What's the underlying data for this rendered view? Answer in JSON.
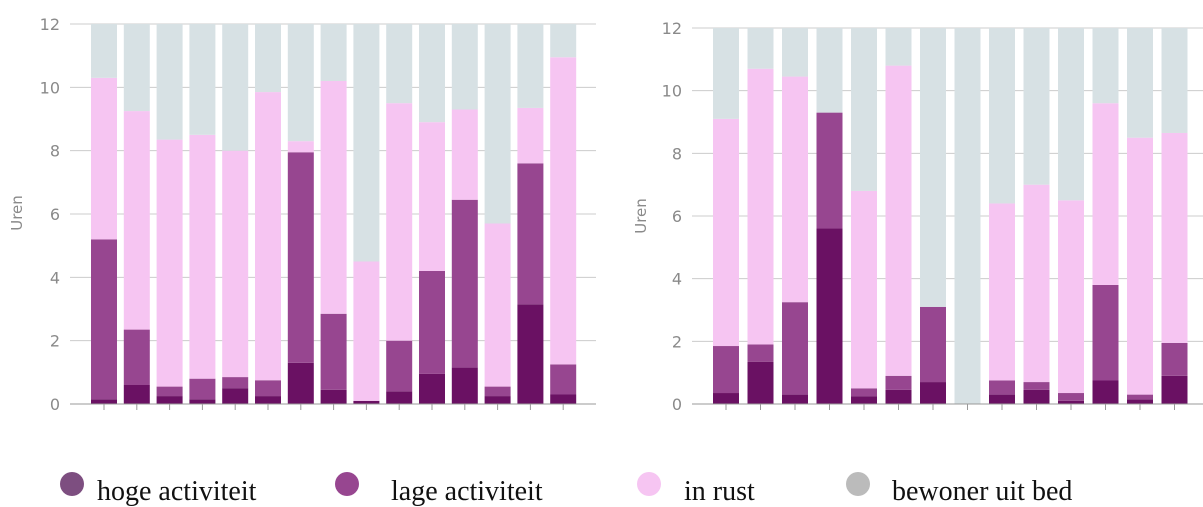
{
  "colors": {
    "hoge": "#6a1163",
    "lage": "#974690",
    "rust": "#f6c5f2",
    "uit_bed": "#d7e1e4",
    "legend_hoge": "#7d4e80",
    "legend_lage": "#974690",
    "legend_rust": "#f6c5f2",
    "legend_uit_bed": "#bbbbbb",
    "grid": "#cccccc"
  },
  "legend": [
    {
      "name": "hoge activiteit",
      "color_key": "legend_hoge"
    },
    {
      "name": "lage activiteit",
      "color_key": "legend_lage"
    },
    {
      "name": "in rust",
      "color_key": "legend_rust"
    },
    {
      "name": "bewoner uit bed",
      "color_key": "legend_uit_bed"
    }
  ],
  "chart_data": [
    {
      "type": "bar",
      "stacked": true,
      "ylabel": "Uren",
      "ylim": [
        0,
        12
      ],
      "yticks": [
        0,
        2,
        4,
        6,
        8,
        10,
        12
      ],
      "grid": true,
      "legend_position": "bottom",
      "series": [
        {
          "name": "hoge activiteit",
          "color_key": "hoge",
          "values": [
            0.15,
            0.6,
            0.25,
            0.15,
            0.5,
            0.25,
            1.3,
            0.45,
            0.1,
            0.4,
            0.95,
            1.15,
            0.25,
            3.15,
            0.3
          ]
        },
        {
          "name": "lage activiteit",
          "color_key": "lage",
          "values": [
            5.05,
            1.75,
            0.3,
            0.65,
            0.35,
            0.5,
            6.65,
            2.4,
            0.0,
            1.6,
            3.25,
            5.3,
            0.3,
            4.45,
            0.95
          ]
        },
        {
          "name": "in rust",
          "color_key": "rust",
          "values": [
            5.1,
            6.9,
            7.8,
            7.7,
            7.15,
            9.1,
            0.35,
            7.35,
            4.4,
            7.5,
            4.7,
            2.85,
            5.15,
            1.75,
            9.7
          ]
        },
        {
          "name": "bewoner uit bed",
          "color_key": "uit_bed",
          "values": [
            1.7,
            2.75,
            3.65,
            3.5,
            4.0,
            2.15,
            3.7,
            1.8,
            7.5,
            2.5,
            3.1,
            2.7,
            6.3,
            2.65,
            1.05
          ]
        }
      ]
    },
    {
      "type": "bar",
      "stacked": true,
      "ylabel": "Uren",
      "ylim": [
        0,
        12
      ],
      "yticks": [
        0,
        2,
        4,
        6,
        8,
        10,
        12
      ],
      "grid": true,
      "legend_position": "bottom",
      "series": [
        {
          "name": "hoge activiteit",
          "color_key": "hoge",
          "values": [
            0.35,
            1.35,
            0.3,
            5.6,
            0.25,
            0.45,
            0.7,
            0.0,
            0.3,
            0.45,
            0.1,
            0.75,
            0.15,
            0.9
          ]
        },
        {
          "name": "lage activiteit",
          "color_key": "lage",
          "values": [
            1.5,
            0.55,
            2.95,
            3.7,
            0.25,
            0.45,
            2.4,
            0.0,
            0.45,
            0.25,
            0.25,
            3.05,
            0.15,
            1.05
          ]
        },
        {
          "name": "in rust",
          "color_key": "rust",
          "values": [
            7.25,
            8.8,
            7.2,
            0.0,
            6.3,
            9.9,
            0.0,
            0.0,
            5.65,
            6.3,
            6.15,
            5.8,
            8.2,
            6.7
          ]
        },
        {
          "name": "bewoner uit bed",
          "color_key": "uit_bed",
          "values": [
            2.9,
            1.3,
            1.55,
            2.7,
            5.2,
            1.2,
            8.9,
            12.0,
            5.6,
            5.0,
            5.5,
            2.4,
            3.5,
            3.35
          ]
        }
      ]
    }
  ]
}
